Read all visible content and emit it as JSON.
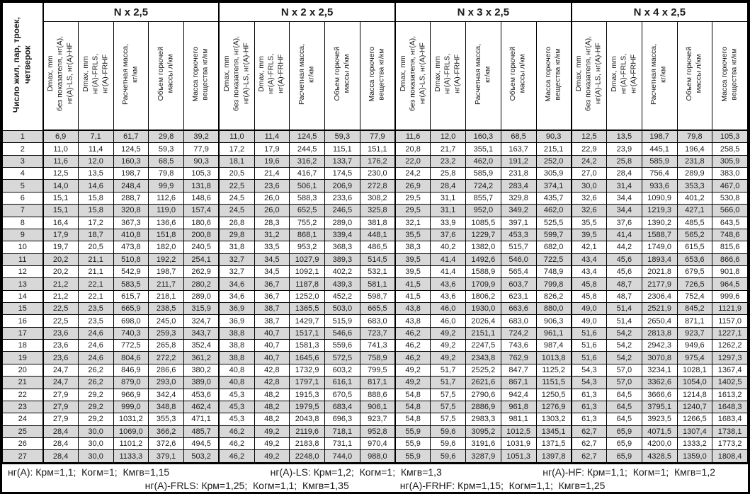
{
  "colors": {
    "row_shade": "#d8d8d8",
    "border": "#000000",
    "background": "#ffffff"
  },
  "table": {
    "row_header": "Число жил, пар, троек,\nчетверок",
    "groups": [
      "N x 2,5",
      "N x 2 x 2,5",
      "N x 3 x 2,5",
      "N x 4 x 2,5"
    ],
    "subcolumns": [
      "Dmax, mm\nбез показателя, нг(А),\nнг(А)-LS, нг(А)-HF",
      "Dmax, mm\nнг(А)-FRLS,\nнг(А)-FRHF",
      "Расчетная масса,\nкг/км",
      "Объем горючей\nмассы л/км",
      "Масса горючего\nвещества кг/км"
    ],
    "rows": [
      [
        "1",
        "6,9",
        "7,1",
        "61,7",
        "29,8",
        "39,2",
        "11,0",
        "11,4",
        "124,5",
        "59,3",
        "77,9",
        "11,6",
        "12,0",
        "160,3",
        "68,5",
        "90,3",
        "12,5",
        "13,5",
        "198,7",
        "79,8",
        "105,3"
      ],
      [
        "2",
        "11,0",
        "11,4",
        "124,5",
        "59,3",
        "77,9",
        "17,2",
        "17,9",
        "244,5",
        "115,1",
        "151,1",
        "20,8",
        "21,7",
        "355,1",
        "163,7",
        "215,1",
        "22,9",
        "23,9",
        "445,1",
        "196,4",
        "258,5"
      ],
      [
        "3",
        "11,6",
        "12,0",
        "160,3",
        "68,5",
        "90,3",
        "18,1",
        "19,6",
        "316,2",
        "133,7",
        "176,2",
        "22,0",
        "23,2",
        "462,0",
        "191,2",
        "252,0",
        "24,2",
        "25,8",
        "585,9",
        "231,8",
        "305,9"
      ],
      [
        "4",
        "12,5",
        "13,5",
        "198,7",
        "79,8",
        "105,3",
        "20,5",
        "21,4",
        "416,7",
        "174,5",
        "230,0",
        "24,2",
        "25,8",
        "585,9",
        "231,8",
        "305,9",
        "27,0",
        "28,4",
        "756,4",
        "289,9",
        "383,0"
      ],
      [
        "5",
        "14,0",
        "14,6",
        "248,4",
        "99,9",
        "131,8",
        "22,5",
        "23,6",
        "506,1",
        "206,9",
        "272,8",
        "26,9",
        "28,4",
        "724,2",
        "283,4",
        "374,1",
        "30,0",
        "31,4",
        "933,6",
        "353,3",
        "467,0"
      ],
      [
        "6",
        "15,1",
        "15,8",
        "288,7",
        "112,6",
        "148,6",
        "24,5",
        "26,0",
        "588,3",
        "233,6",
        "308,2",
        "29,5",
        "31,1",
        "855,7",
        "329,8",
        "435,7",
        "32,6",
        "34,4",
        "1090,9",
        "401,2",
        "530,8"
      ],
      [
        "7",
        "15,1",
        "15,8",
        "320,8",
        "119,0",
        "157,4",
        "24,5",
        "26,0",
        "652,5",
        "246,5",
        "325,8",
        "29,5",
        "31,1",
        "952,0",
        "349,2",
        "462,0",
        "32,6",
        "34,4",
        "1219,3",
        "427,1",
        "566,0"
      ],
      [
        "8",
        "16,4",
        "17,2",
        "367,3",
        "136,6",
        "180,6",
        "26,8",
        "28,3",
        "755,2",
        "289,0",
        "381,8",
        "32,1",
        "33,9",
        "1085,5",
        "397,1",
        "525,5",
        "35,5",
        "37,6",
        "1390,2",
        "485,5",
        "643,5"
      ],
      [
        "9",
        "17,9",
        "18,7",
        "410,8",
        "151,8",
        "200,8",
        "29,8",
        "31,2",
        "868,1",
        "339,4",
        "448,1",
        "35,5",
        "37,6",
        "1229,7",
        "453,3",
        "599,7",
        "39,5",
        "41,4",
        "1588,7",
        "565,2",
        "748,6"
      ],
      [
        "10",
        "19,7",
        "20,5",
        "473,8",
        "182,0",
        "240,5",
        "31,8",
        "33,5",
        "953,2",
        "368,3",
        "486,5",
        "38,3",
        "40,2",
        "1382,0",
        "515,7",
        "682,0",
        "42,1",
        "44,2",
        "1749,0",
        "615,5",
        "815,6"
      ],
      [
        "11",
        "20,2",
        "21,1",
        "510,8",
        "192,2",
        "254,1",
        "32,7",
        "34,5",
        "1027,9",
        "389,3",
        "514,5",
        "39,5",
        "41,4",
        "1492,6",
        "546,0",
        "722,5",
        "43,4",
        "45,6",
        "1893,4",
        "653,6",
        "866,6"
      ],
      [
        "12",
        "20,2",
        "21,1",
        "542,9",
        "198,7",
        "262,9",
        "32,7",
        "34,5",
        "1092,1",
        "402,2",
        "532,1",
        "39,5",
        "41,4",
        "1588,9",
        "565,4",
        "748,9",
        "43,4",
        "45,6",
        "2021,8",
        "679,5",
        "901,8"
      ],
      [
        "13",
        "21,2",
        "22,1",
        "583,5",
        "211,7",
        "280,2",
        "34,6",
        "36,7",
        "1187,8",
        "439,3",
        "581,1",
        "41,5",
        "43,6",
        "1709,9",
        "603,7",
        "799,8",
        "45,8",
        "48,7",
        "2177,9",
        "726,5",
        "964,5"
      ],
      [
        "14",
        "21,2",
        "22,1",
        "615,7",
        "218,1",
        "289,0",
        "34,6",
        "36,7",
        "1252,0",
        "452,2",
        "598,7",
        "41,5",
        "43,6",
        "1806,2",
        "623,1",
        "826,2",
        "45,8",
        "48,7",
        "2306,4",
        "752,4",
        "999,6"
      ],
      [
        "15",
        "22,5",
        "23,5",
        "665,9",
        "238,5",
        "315,9",
        "36,9",
        "38,7",
        "1365,5",
        "503,0",
        "665,5",
        "43,8",
        "46,0",
        "1930,0",
        "663,6",
        "880,0",
        "49,0",
        "51,4",
        "2521,9",
        "845,2",
        "1121,9"
      ],
      [
        "16",
        "22,5",
        "23,5",
        "698,0",
        "245,0",
        "324,7",
        "36,9",
        "38,7",
        "1429,7",
        "515,9",
        "683,0",
        "43,8",
        "46,0",
        "2026,4",
        "683,0",
        "906,3",
        "49,0",
        "51,4",
        "2650,4",
        "871,1",
        "1157,0"
      ],
      [
        "17",
        "23,6",
        "24,6",
        "740,3",
        "259,3",
        "343,7",
        "38,8",
        "40,7",
        "1517,1",
        "546,6",
        "723,7",
        "46,2",
        "49,2",
        "2151,1",
        "724,2",
        "961,1",
        "51,6",
        "54,2",
        "2813,8",
        "923,7",
        "1227,1"
      ],
      [
        "18",
        "23,6",
        "24,6",
        "772,5",
        "265,8",
        "352,4",
        "38,8",
        "40,7",
        "1581,3",
        "559,6",
        "741,3",
        "46,2",
        "49,2",
        "2247,5",
        "743,6",
        "987,4",
        "51,6",
        "54,2",
        "2942,3",
        "949,6",
        "1262,2"
      ],
      [
        "19",
        "23,6",
        "24,6",
        "804,6",
        "272,2",
        "361,2",
        "38,8",
        "40,7",
        "1645,6",
        "572,5",
        "758,9",
        "46,2",
        "49,2",
        "2343,8",
        "762,9",
        "1013,8",
        "51,6",
        "54,2",
        "3070,8",
        "975,4",
        "1297,3"
      ],
      [
        "20",
        "24,7",
        "26,2",
        "846,9",
        "286,6",
        "380,2",
        "40,8",
        "42,8",
        "1732,9",
        "603,2",
        "799,5",
        "49,2",
        "51,7",
        "2525,2",
        "847,7",
        "1125,2",
        "54,3",
        "57,0",
        "3234,1",
        "1028,1",
        "1367,4"
      ],
      [
        "21",
        "24,7",
        "26,2",
        "879,0",
        "293,0",
        "389,0",
        "40,8",
        "42,8",
        "1797,1",
        "616,1",
        "817,1",
        "49,2",
        "51,7",
        "2621,6",
        "867,1",
        "1151,5",
        "54,3",
        "57,0",
        "3362,6",
        "1054,0",
        "1402,5"
      ],
      [
        "22",
        "27,9",
        "29,2",
        "966,9",
        "342,4",
        "453,6",
        "45,3",
        "48,2",
        "1915,3",
        "670,5",
        "888,6",
        "54,8",
        "57,5",
        "2790,6",
        "942,4",
        "1250,5",
        "61,3",
        "64,5",
        "3666,6",
        "1214,8",
        "1613,2"
      ],
      [
        "23",
        "27,9",
        "29,2",
        "999,0",
        "348,8",
        "462,4",
        "45,3",
        "48,2",
        "1979,5",
        "683,4",
        "906,1",
        "54,8",
        "57,5",
        "2886,9",
        "961,8",
        "1276,9",
        "61,3",
        "64,5",
        "3795,1",
        "1240,7",
        "1648,3"
      ],
      [
        "24",
        "27,9",
        "29,2",
        "1031,2",
        "355,3",
        "471,1",
        "45,3",
        "48,2",
        "2043,8",
        "696,3",
        "923,7",
        "54,8",
        "57,5",
        "2983,3",
        "981,1",
        "1303,2",
        "61,3",
        "64,5",
        "3923,5",
        "1266,5",
        "1683,4"
      ],
      [
        "25",
        "28,4",
        "30,0",
        "1069,0",
        "366,2",
        "485,7",
        "46,2",
        "49,2",
        "2119,6",
        "718,1",
        "952,8",
        "55,9",
        "59,6",
        "3095,2",
        "1012,5",
        "1345,1",
        "62,7",
        "65,9",
        "4071,5",
        "1307,4",
        "1738,1"
      ],
      [
        "26",
        "28,4",
        "30,0",
        "1101,2",
        "372,6",
        "494,5",
        "46,2",
        "49,2",
        "2183,8",
        "731,1",
        "970,4",
        "55,9",
        "59,6",
        "3191,6",
        "1031,9",
        "1371,5",
        "62,7",
        "65,9",
        "4200,0",
        "1333,2",
        "1773,2"
      ],
      [
        "27",
        "28,4",
        "30,0",
        "1133,3",
        "379,1",
        "503,2",
        "46,2",
        "49,2",
        "2248,0",
        "744,0",
        "988,0",
        "55,9",
        "59,6",
        "3287,9",
        "1051,3",
        "1397,8",
        "62,7",
        "65,9",
        "4328,5",
        "1359,0",
        "1808,4"
      ]
    ]
  },
  "footnotes": {
    "line1": [
      "нг(А): Крм=1,1;  Когм=1;  Кмгв=1,15",
      "нг(А)-LS: Крм=1,2;  Когм=1;  Кмгв=1,3",
      "нг(А)-HF: Крм=1,1;  Когм=1;  Кмгв=1,2"
    ],
    "line2": [
      "нг(А)-FRLS: Крм=1,25;  Когм=1,1;  Кмгв=1,35",
      "нг(А)-FRHF: Крм=1,15;  Когм=1,1;  Кмгв=1,25"
    ]
  }
}
